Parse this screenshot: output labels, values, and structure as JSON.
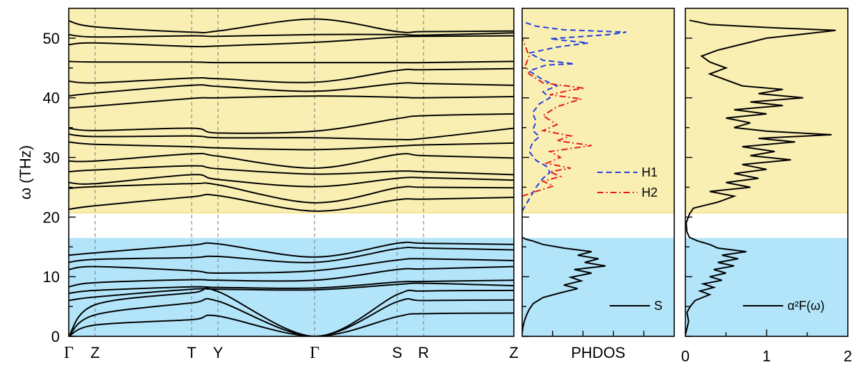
{
  "chart_data": [
    {
      "type": "line",
      "panel": "phonon-dispersion",
      "ylabel": "ω (THz)",
      "ylim": [
        0,
        55
      ],
      "yticks": [
        "0",
        "10",
        "20",
        "30",
        "40",
        "50"
      ],
      "xticks": [
        "Γ",
        "Z",
        "T",
        "Y",
        "Γ",
        "S",
        "R",
        "Z"
      ],
      "shaded_regions": [
        {
          "from": 0,
          "to": 16.5,
          "color": "#b3e5fa"
        },
        {
          "from": 20.7,
          "to": 55,
          "color": "#faefb3"
        }
      ],
      "series": [
        {
          "values": [
            0,
            1.9,
            2.8,
            3.4,
            0,
            3.3,
            3.8,
            3.9
          ]
        },
        {
          "values": [
            0,
            3.6,
            5.6,
            5.9,
            0,
            5.8,
            6.0,
            6.1
          ]
        },
        {
          "values": [
            0,
            5.3,
            7.3,
            7.5,
            0,
            7.0,
            7.6,
            7.7
          ]
        },
        {
          "values": [
            6.0,
            6.6,
            7.9,
            7.9,
            7.8,
            8.7,
            8.9,
            8.5
          ]
        },
        {
          "values": [
            7.2,
            7.7,
            8.3,
            8.2,
            8.1,
            9.1,
            9.2,
            9.4
          ]
        },
        {
          "values": [
            8.3,
            9.0,
            9.5,
            9.4,
            9.4,
            11.2,
            11.3,
            11.7
          ]
        },
        {
          "values": [
            11.2,
            11.7,
            11.0,
            10.6,
            11.0,
            12.8,
            13.0,
            12.7
          ]
        },
        {
          "values": [
            12.4,
            12.9,
            13.2,
            13.4,
            12.4,
            14.7,
            14.8,
            14.5
          ]
        },
        {
          "values": [
            13.6,
            14.0,
            15.3,
            15.5,
            13.3,
            15.6,
            15.6,
            15.4
          ]
        },
        {
          "values": [
            21.3,
            21.9,
            23.4,
            23.6,
            21.0,
            22.9,
            23.0,
            23.3
          ]
        },
        {
          "values": [
            24.8,
            25.1,
            25.6,
            25.4,
            22.4,
            24.9,
            25.0,
            24.9
          ]
        },
        {
          "values": [
            25.8,
            25.6,
            27.1,
            26.3,
            25.1,
            26.5,
            26.6,
            26.2
          ]
        },
        {
          "values": [
            27.6,
            27.9,
            28.6,
            28.1,
            27.2,
            27.7,
            27.6,
            27.1
          ]
        },
        {
          "values": [
            29.4,
            29.4,
            30.6,
            30.2,
            28.2,
            30.5,
            30.3,
            29.9
          ]
        },
        {
          "values": [
            32.6,
            32.2,
            31.8,
            31.6,
            31.3,
            31.9,
            32.1,
            32.4
          ]
        },
        {
          "values": [
            33.9,
            33.5,
            33.6,
            33.3,
            33.3,
            33.0,
            33.2,
            34.9
          ]
        },
        {
          "values": [
            34.9,
            34.5,
            34.9,
            34.1,
            34.4,
            36.5,
            37.0,
            37.3
          ]
        },
        {
          "values": [
            38.3,
            38.6,
            39.9,
            40.0,
            40.3,
            40.1,
            40.0,
            40.2
          ]
        },
        {
          "values": [
            40.3,
            40.8,
            42.1,
            41.9,
            41.1,
            42.4,
            42.4,
            42.1
          ]
        },
        {
          "values": [
            42.8,
            42.5,
            43.3,
            43.2,
            42.6,
            44.6,
            44.7,
            44.9
          ]
        },
        {
          "values": [
            46.1,
            46.0,
            46.0,
            45.9,
            45.9,
            45.9,
            45.9,
            46.1
          ]
        },
        {
          "values": [
            48.9,
            49.2,
            48.6,
            48.7,
            49.3,
            50.2,
            50.3,
            50.4
          ]
        },
        {
          "values": [
            50.6,
            50.2,
            50.4,
            50.3,
            50.6,
            50.6,
            50.5,
            50.9
          ]
        },
        {
          "values": [
            52.9,
            51.9,
            51.0,
            51.2,
            53.2,
            51.1,
            51.1,
            51.2
          ]
        }
      ]
    },
    {
      "type": "line",
      "panel": "phdos",
      "xlabel": "PHDOS",
      "ylim": [
        0,
        55
      ],
      "legend": "right",
      "series": [
        {
          "name": "S",
          "color": "#000000",
          "style": "solid",
          "points": [
            [
              0,
              0.5
            ],
            [
              0.01,
              1.5
            ],
            [
              0.03,
              2.5
            ],
            [
              0.06,
              3.5
            ],
            [
              0.1,
              4.5
            ],
            [
              0.16,
              5.5
            ],
            [
              0.3,
              6.5
            ],
            [
              0.55,
              7.3
            ],
            [
              0.8,
              8.0
            ],
            [
              0.6,
              8.6
            ],
            [
              0.85,
              9.3
            ],
            [
              0.7,
              9.9
            ],
            [
              1.0,
              10.6
            ],
            [
              0.75,
              11.2
            ],
            [
              1.2,
              11.8
            ],
            [
              0.9,
              12.4
            ],
            [
              1.1,
              13.0
            ],
            [
              0.8,
              13.6
            ],
            [
              1.0,
              14.2
            ],
            [
              0.6,
              14.8
            ],
            [
              0.3,
              15.4
            ],
            [
              0.15,
              16.0
            ],
            [
              0.05,
              16.3
            ],
            [
              0,
              16.6
            ]
          ]
        },
        {
          "name": "H1",
          "color": "#1f3de0",
          "style": "dashed",
          "points": [
            [
              0,
              21
            ],
            [
              0.1,
              23
            ],
            [
              0.2,
              25
            ],
            [
              0.3,
              26.5
            ],
            [
              0.4,
              27.5
            ],
            [
              0.35,
              28.5
            ],
            [
              0.2,
              29.5
            ],
            [
              0.1,
              31
            ],
            [
              0.15,
              32.5
            ],
            [
              0.25,
              33.5
            ],
            [
              0.15,
              34.5
            ],
            [
              0.2,
              36
            ],
            [
              0.15,
              37.5
            ],
            [
              0.25,
              39
            ],
            [
              0.4,
              40
            ],
            [
              0.3,
              41
            ],
            [
              0.5,
              42
            ],
            [
              0.3,
              43
            ],
            [
              0.1,
              44.5
            ],
            [
              0.35,
              45.5
            ],
            [
              0.75,
              45.7
            ],
            [
              0.3,
              46.3
            ],
            [
              0.1,
              47.5
            ],
            [
              0.5,
              48.5
            ],
            [
              0.95,
              49.2
            ],
            [
              0.4,
              49.9
            ],
            [
              1.25,
              50.6
            ],
            [
              1.5,
              51
            ],
            [
              0.6,
              51.4
            ],
            [
              0.2,
              52
            ],
            [
              0,
              52.8
            ]
          ]
        },
        {
          "name": "H2",
          "color": "#e41b1b",
          "style": "dashdot",
          "points": [
            [
              0,
              23.5
            ],
            [
              0.2,
              24.3
            ],
            [
              0.45,
              25.2
            ],
            [
              0.3,
              26
            ],
            [
              0.55,
              26.8
            ],
            [
              0.4,
              27.6
            ],
            [
              0.7,
              28.2
            ],
            [
              0.35,
              29
            ],
            [
              0.55,
              30
            ],
            [
              0.4,
              31
            ],
            [
              1.0,
              32
            ],
            [
              0.5,
              32.8
            ],
            [
              0.7,
              33.6
            ],
            [
              0.3,
              34.5
            ],
            [
              0.5,
              35.5
            ],
            [
              0.3,
              37
            ],
            [
              0.5,
              38.5
            ],
            [
              0.85,
              39.8
            ],
            [
              0.4,
              40.5
            ],
            [
              0.7,
              41.3
            ],
            [
              0.9,
              41.6
            ],
            [
              0.3,
              42.5
            ],
            [
              0.1,
              44
            ],
            [
              0.05,
              45.5
            ],
            [
              0.1,
              47
            ],
            [
              0.05,
              48.5
            ],
            [
              0,
              50
            ]
          ]
        }
      ]
    },
    {
      "type": "line",
      "panel": "eliashberg",
      "xlim": [
        0,
        2
      ],
      "xticks": [
        "0",
        "1",
        "2"
      ],
      "ylim": [
        0,
        55
      ],
      "legend": "right",
      "series": [
        {
          "name": "α²F(ω)",
          "color": "#000000",
          "style": "solid",
          "points": [
            [
              0,
              0.2
            ],
            [
              0.04,
              2.5
            ],
            [
              0.02,
              4
            ],
            [
              0.06,
              5
            ],
            [
              0.12,
              6
            ],
            [
              0.3,
              7
            ],
            [
              0.18,
              7.6
            ],
            [
              0.35,
              8.2
            ],
            [
              0.22,
              8.8
            ],
            [
              0.45,
              9.4
            ],
            [
              0.3,
              10
            ],
            [
              0.5,
              10.6
            ],
            [
              0.35,
              11.2
            ],
            [
              0.6,
              11.8
            ],
            [
              0.4,
              12.4
            ],
            [
              0.65,
              13
            ],
            [
              0.45,
              13.6
            ],
            [
              0.75,
              14.2
            ],
            [
              0.4,
              14.8
            ],
            [
              0.3,
              15.4
            ],
            [
              0.15,
              16
            ],
            [
              0.05,
              16.6
            ],
            [
              0.02,
              17.5
            ],
            [
              0.01,
              19
            ],
            [
              0.05,
              20.5
            ],
            [
              0.1,
              21.5
            ],
            [
              0.4,
              22.5
            ],
            [
              0.6,
              23.5
            ],
            [
              0.3,
              24.3
            ],
            [
              0.8,
              25
            ],
            [
              0.5,
              25.8
            ],
            [
              0.9,
              26.5
            ],
            [
              0.6,
              27.3
            ],
            [
              1.0,
              28
            ],
            [
              0.7,
              28.8
            ],
            [
              1.3,
              29.6
            ],
            [
              0.8,
              30.3
            ],
            [
              1.1,
              31
            ],
            [
              0.7,
              31.8
            ],
            [
              1.35,
              32.6
            ],
            [
              0.9,
              33.2
            ],
            [
              1.8,
              33.8
            ],
            [
              1.0,
              34.4
            ],
            [
              0.6,
              35
            ],
            [
              0.8,
              35.8
            ],
            [
              0.5,
              36.6
            ],
            [
              1.0,
              37.3
            ],
            [
              0.6,
              38
            ],
            [
              1.2,
              38.7
            ],
            [
              0.8,
              39.3
            ],
            [
              1.45,
              40
            ],
            [
              0.9,
              40.7
            ],
            [
              1.2,
              41.4
            ],
            [
              0.7,
              42
            ],
            [
              0.5,
              43
            ],
            [
              0.3,
              44
            ],
            [
              0.5,
              45
            ],
            [
              0.3,
              46
            ],
            [
              0.2,
              47
            ],
            [
              0.4,
              48
            ],
            [
              0.7,
              49
            ],
            [
              1.0,
              50
            ],
            [
              1.4,
              50.6
            ],
            [
              1.85,
              51.3
            ],
            [
              1.0,
              51.8
            ],
            [
              0.3,
              52.3
            ],
            [
              0.05,
              53
            ]
          ]
        }
      ]
    }
  ]
}
